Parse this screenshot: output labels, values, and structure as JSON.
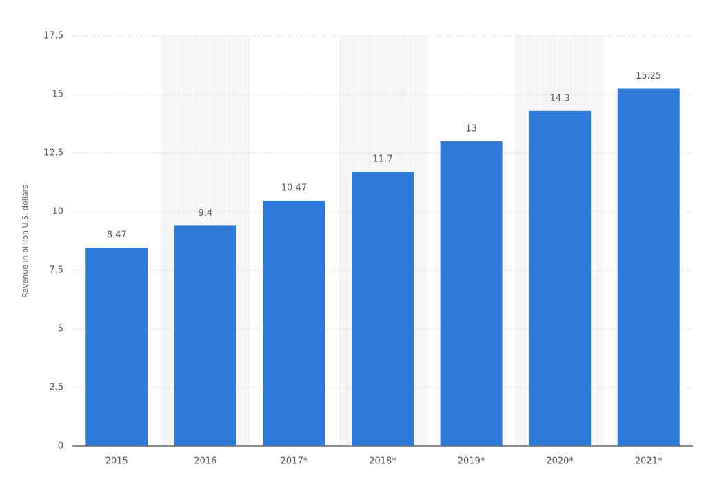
{
  "chart_data": {
    "type": "bar",
    "y_axis_label": "Revenue in billion U.S. dollars",
    "categories": [
      "2015",
      "2016",
      "2017*",
      "2018*",
      "2019*",
      "2020*",
      "2021*"
    ],
    "values": [
      8.47,
      9.4,
      10.47,
      11.7,
      13,
      14.3,
      15.25
    ],
    "color": "#2f79d9",
    "ylim": [
      0,
      17.5
    ],
    "yticks": [
      0,
      2.5,
      5,
      7.5,
      10,
      12.5,
      15,
      17.5
    ],
    "grid": true
  }
}
